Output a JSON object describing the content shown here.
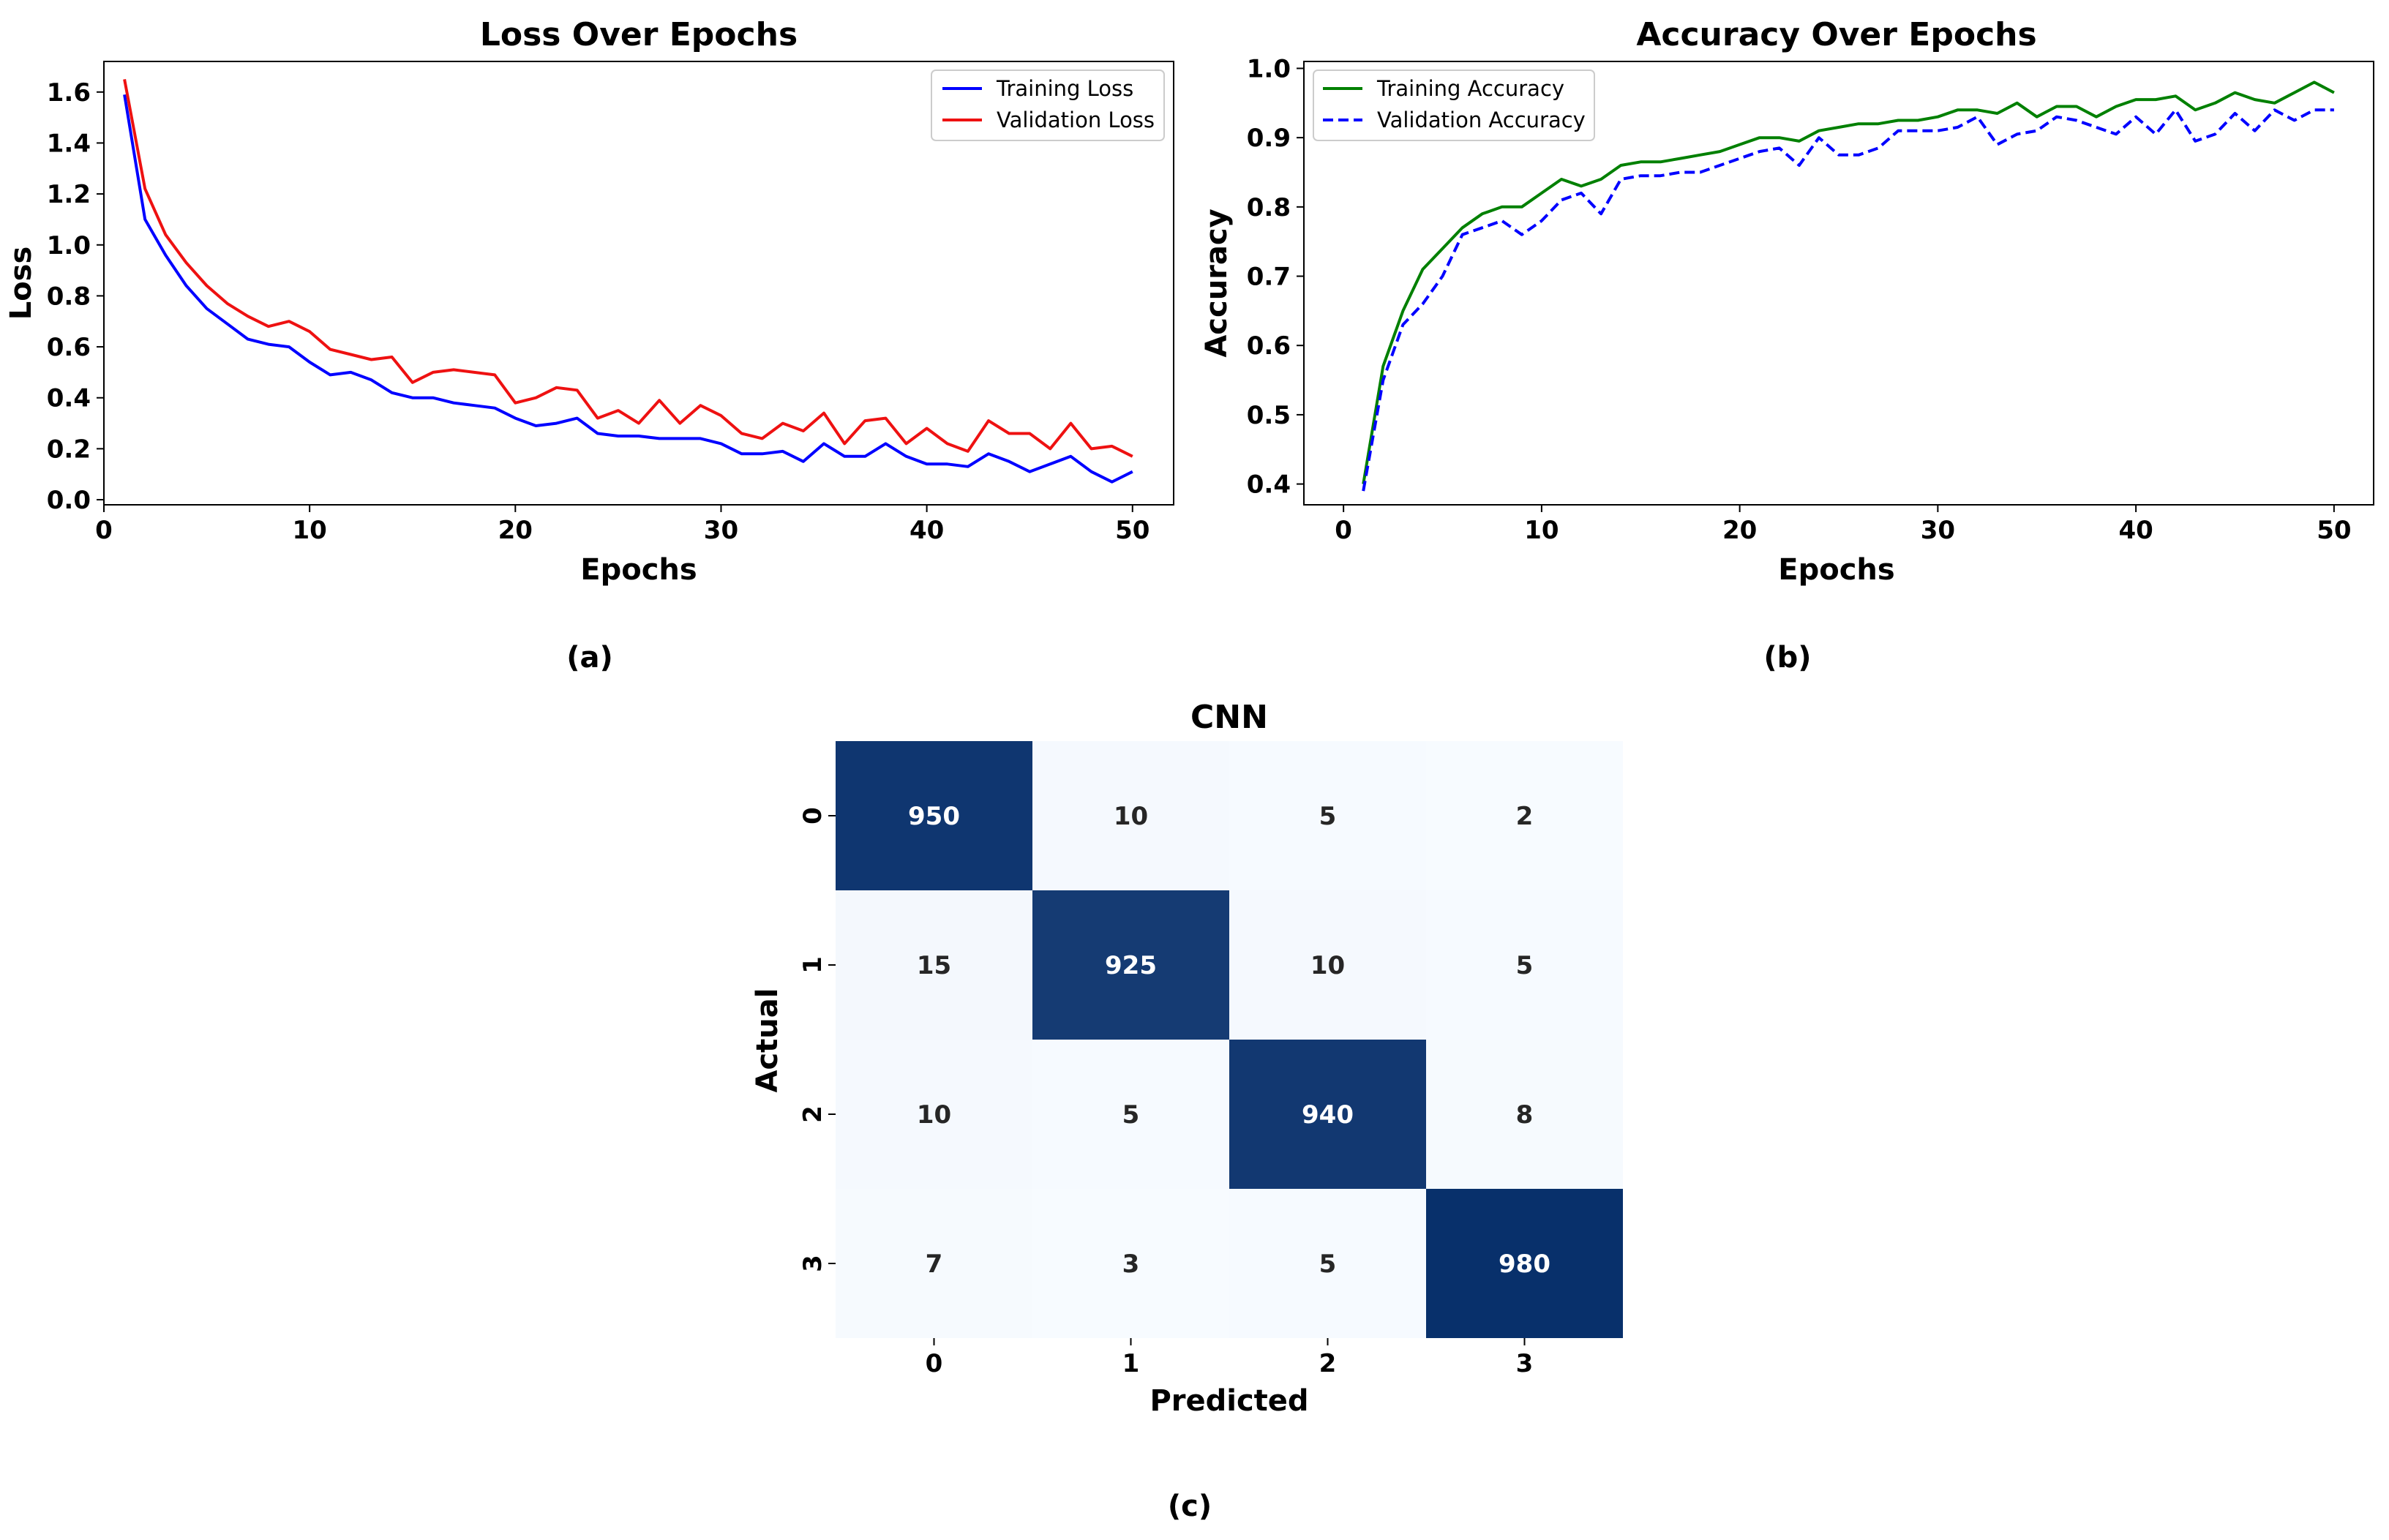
{
  "captions": [
    "(a)",
    "(b)",
    "(c)"
  ],
  "chart_data": [
    {
      "type": "line",
      "title": "Loss Over Epochs",
      "xlabel": "Epochs",
      "ylabel": "Loss",
      "xlim": [
        0,
        52
      ],
      "ylim": [
        -0.02,
        1.72
      ],
      "xticks": [
        0,
        10,
        20,
        30,
        40,
        50
      ],
      "yticks": [
        0.0,
        0.2,
        0.4,
        0.6,
        0.8,
        1.0,
        1.2,
        1.4,
        1.6
      ],
      "legend": "top-right",
      "x": [
        1,
        2,
        3,
        4,
        5,
        6,
        7,
        8,
        9,
        10,
        11,
        12,
        13,
        14,
        15,
        16,
        17,
        18,
        19,
        20,
        21,
        22,
        23,
        24,
        25,
        26,
        27,
        28,
        29,
        30,
        31,
        32,
        33,
        34,
        35,
        36,
        37,
        38,
        39,
        40,
        41,
        42,
        43,
        44,
        45,
        46,
        47,
        48,
        49,
        50
      ],
      "series": [
        {
          "name": "Training Loss",
          "color": "#0000ff",
          "style": "solid",
          "values": [
            1.59,
            1.1,
            0.96,
            0.84,
            0.75,
            0.69,
            0.63,
            0.61,
            0.6,
            0.54,
            0.49,
            0.5,
            0.47,
            0.42,
            0.4,
            0.4,
            0.38,
            0.37,
            0.36,
            0.32,
            0.29,
            0.3,
            0.32,
            0.26,
            0.25,
            0.25,
            0.24,
            0.24,
            0.24,
            0.22,
            0.18,
            0.18,
            0.19,
            0.15,
            0.22,
            0.17,
            0.17,
            0.22,
            0.17,
            0.14,
            0.14,
            0.13,
            0.18,
            0.15,
            0.11,
            0.14,
            0.17,
            0.11,
            0.07,
            0.11
          ]
        },
        {
          "name": "Validation Loss",
          "color": "#ee1111",
          "style": "solid",
          "values": [
            1.65,
            1.22,
            1.04,
            0.93,
            0.84,
            0.77,
            0.72,
            0.68,
            0.7,
            0.66,
            0.59,
            0.57,
            0.55,
            0.56,
            0.46,
            0.5,
            0.51,
            0.5,
            0.49,
            0.38,
            0.4,
            0.44,
            0.43,
            0.32,
            0.35,
            0.3,
            0.39,
            0.3,
            0.37,
            0.33,
            0.26,
            0.24,
            0.3,
            0.27,
            0.34,
            0.22,
            0.31,
            0.32,
            0.22,
            0.28,
            0.22,
            0.19,
            0.31,
            0.26,
            0.26,
            0.2,
            0.3,
            0.2,
            0.21,
            0.17
          ]
        }
      ]
    },
    {
      "type": "line",
      "title": "Accuracy Over Epochs",
      "xlabel": "Epochs",
      "ylabel": "Accuracy",
      "xlim": [
        -2,
        52
      ],
      "ylim": [
        0.37,
        1.01
      ],
      "xticks": [
        0,
        10,
        20,
        30,
        40,
        50
      ],
      "yticks": [
        0.4,
        0.5,
        0.6,
        0.7,
        0.8,
        0.9,
        1.0
      ],
      "legend": "top-left",
      "x": [
        1,
        2,
        3,
        4,
        5,
        6,
        7,
        8,
        9,
        10,
        11,
        12,
        13,
        14,
        15,
        16,
        17,
        18,
        19,
        20,
        21,
        22,
        23,
        24,
        25,
        26,
        27,
        28,
        29,
        30,
        31,
        32,
        33,
        34,
        35,
        36,
        37,
        38,
        39,
        40,
        41,
        42,
        43,
        44,
        45,
        46,
        47,
        48,
        49,
        50
      ],
      "series": [
        {
          "name": "Training Accuracy",
          "color": "#008000",
          "style": "solid",
          "values": [
            0.4,
            0.57,
            0.65,
            0.71,
            0.74,
            0.77,
            0.79,
            0.8,
            0.8,
            0.82,
            0.84,
            0.83,
            0.84,
            0.86,
            0.865,
            0.865,
            0.87,
            0.875,
            0.88,
            0.89,
            0.9,
            0.9,
            0.895,
            0.91,
            0.915,
            0.92,
            0.92,
            0.925,
            0.925,
            0.93,
            0.94,
            0.94,
            0.935,
            0.95,
            0.93,
            0.945,
            0.945,
            0.93,
            0.945,
            0.955,
            0.955,
            0.96,
            0.94,
            0.95,
            0.965,
            0.955,
            0.95,
            0.965,
            0.98,
            0.965
          ]
        },
        {
          "name": "Validation Accuracy",
          "color": "#0000ff",
          "style": "dashed",
          "values": [
            0.39,
            0.55,
            0.63,
            0.66,
            0.7,
            0.76,
            0.77,
            0.78,
            0.76,
            0.78,
            0.81,
            0.82,
            0.79,
            0.84,
            0.845,
            0.845,
            0.85,
            0.85,
            0.86,
            0.87,
            0.88,
            0.885,
            0.86,
            0.9,
            0.875,
            0.875,
            0.885,
            0.91,
            0.91,
            0.91,
            0.915,
            0.93,
            0.89,
            0.905,
            0.91,
            0.93,
            0.925,
            0.915,
            0.905,
            0.93,
            0.905,
            0.94,
            0.895,
            0.905,
            0.935,
            0.91,
            0.94,
            0.925,
            0.94,
            0.94
          ]
        }
      ]
    },
    {
      "type": "heatmap",
      "title": "CNN",
      "xlabel": "Predicted",
      "ylabel": "Actual",
      "x_categories": [
        "0",
        "1",
        "2",
        "3"
      ],
      "y_categories": [
        "0",
        "1",
        "2",
        "3"
      ],
      "colorscale": [
        "#f7fbff",
        "#08306b"
      ],
      "values": [
        [
          950,
          10,
          5,
          2
        ],
        [
          15,
          925,
          10,
          5
        ],
        [
          10,
          5,
          940,
          8
        ],
        [
          7,
          3,
          5,
          980
        ]
      ]
    }
  ]
}
